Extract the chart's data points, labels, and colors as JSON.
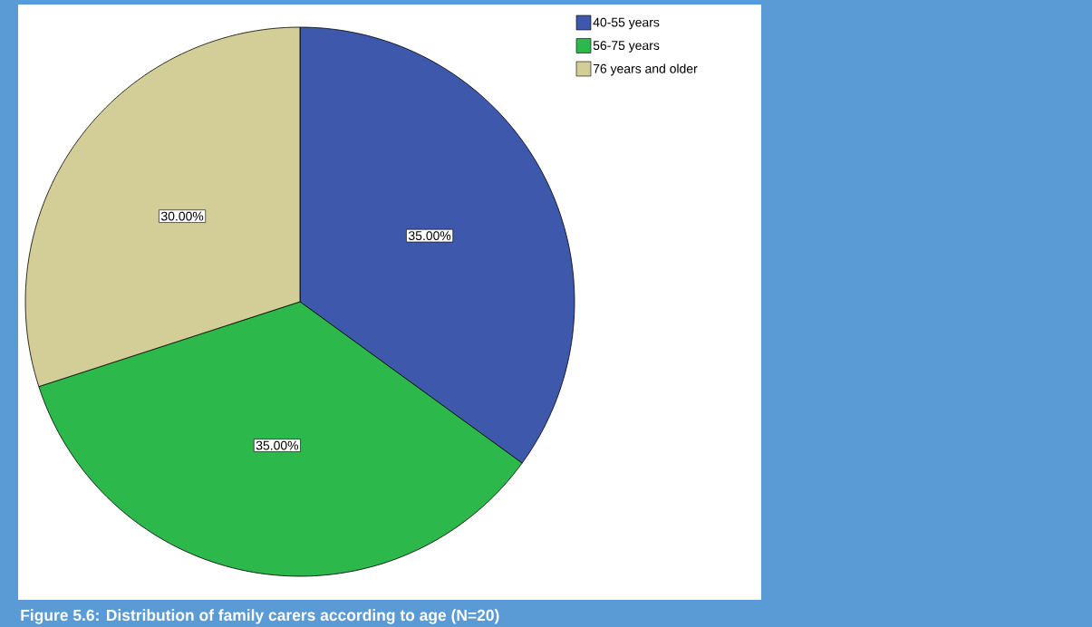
{
  "chart_data": {
    "type": "pie",
    "categories": [
      "40-55 years",
      "56-75 years",
      "76 years and older"
    ],
    "values": [
      35,
      35,
      30
    ],
    "colors": [
      "#3e58ac",
      "#2db84b",
      "#d3ce97"
    ],
    "value_labels": [
      "35.00%",
      "35.00%",
      "30.00%"
    ],
    "legend": "top right",
    "annotations": [
      "Figure 5.6: Distribution of family carers according to age (N=20)"
    ]
  }
}
